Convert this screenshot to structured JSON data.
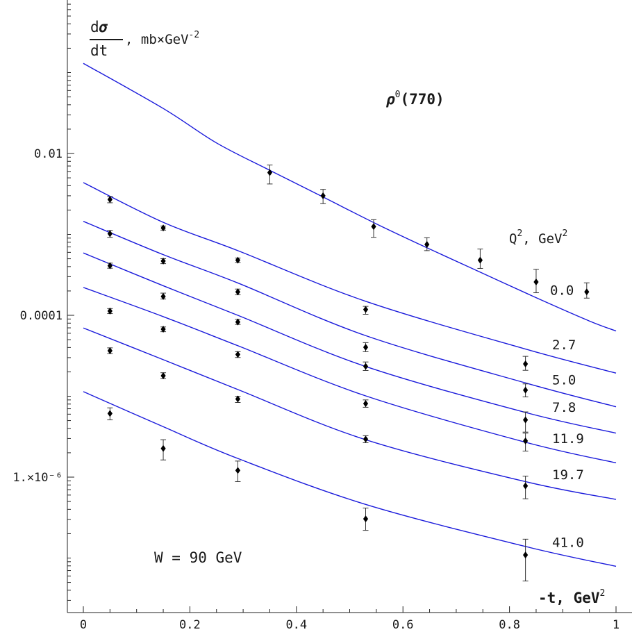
{
  "chart_data": {
    "type": "scatter",
    "title": "",
    "subtitle": "",
    "yscale": "log",
    "xlim": [
      0,
      1
    ],
    "ylim": [
      2.5e-08,
      1.0
    ],
    "x_ticks": [
      0,
      0.2,
      0.4,
      0.6,
      0.8,
      1
    ],
    "x_tick_labels": [
      "0",
      "0.2",
      "0.4",
      "0.6",
      "0.8",
      "1"
    ],
    "y_ticks": [
      0.01,
      0.0001,
      1e-06
    ],
    "y_tick_labels": [
      "0.01",
      "0.0001",
      "1.×10⁻⁶"
    ],
    "grid": false,
    "legend_title": {
      "main": "Q",
      "sup": "2",
      "rest": ", GeV",
      "sup2": "2"
    },
    "ylabel": {
      "num_d": "d",
      "num_sym": "σ",
      "den": "dt",
      "units": ", mb×GeV",
      "units_sup": "-2"
    },
    "xlabel": {
      "main": "-t, GeV",
      "sup": "2"
    },
    "particle_label": {
      "sym": "ρ",
      "sup": "0",
      "rest": "(770)"
    },
    "energy_label": "W = 90 GeV",
    "curve_color": "#1a1adb",
    "point_color": "#000000",
    "series": [
      {
        "name": "0.0",
        "curve": {
          "x": [
            0,
            0.15,
            0.25,
            0.35,
            0.45,
            0.55,
            0.65,
            0.75,
            0.85,
            0.95,
            1.0
          ],
          "y": [
            0.13,
            0.036,
            0.0135,
            0.0062,
            0.0029,
            0.00135,
            0.00066,
            0.00033,
            0.000165,
            8.5e-05,
            6.4e-05
          ]
        },
        "points": {
          "x": [
            0.35,
            0.45,
            0.545,
            0.645,
            0.745,
            0.85,
            0.945
          ],
          "y": [
            0.0058,
            0.003,
            0.00125,
            0.00075,
            0.00048,
            0.000258,
            0.000195
          ],
          "err_lo": [
            0.0042,
            0.0024,
            0.00092,
            0.00063,
            0.00038,
            0.00019,
            0.000163
          ],
          "err_hi": [
            0.0072,
            0.0036,
            0.00152,
            0.00091,
            0.00066,
            0.00037,
            0.000252
          ]
        }
      },
      {
        "name": "2.7",
        "curve": {
          "x": [
            0,
            0.15,
            0.29,
            0.53,
            0.83,
            1.0
          ],
          "y": [
            0.00437,
            0.00141,
            0.00063,
            0.000149,
            3.83e-05,
            1.93e-05
          ]
        },
        "points": {
          "x": [
            0.05,
            0.15,
            0.29,
            0.53,
            0.83
          ],
          "y": [
            0.0027,
            0.0012,
            0.00048,
            0.000118,
            2.51e-05
          ],
          "err_lo": [
            0.00246,
            0.00113,
            0.00045,
            0.000103,
            2.09e-05
          ],
          "err_hi": [
            0.00294,
            0.00127,
            0.00051,
            0.000129,
            3.11e-05
          ]
        }
      },
      {
        "name": "5.0",
        "curve": {
          "x": [
            0,
            0.15,
            0.29,
            0.53,
            0.83,
            1.0
          ],
          "y": [
            0.00145,
            0.000562,
            0.000251,
            5.61e-05,
            1.46e-05,
            7.4e-06
          ]
        },
        "points": {
          "x": [
            0.05,
            0.15,
            0.29,
            0.53,
            0.83
          ],
          "y": [
            0.00102,
            0.000468,
            0.000195,
            4.03e-05,
            1.19e-05
          ],
          "err_lo": [
            0.00092,
            0.000435,
            0.000179,
            3.55e-05,
            9.8e-06
          ],
          "err_hi": [
            0.00112,
            0.000501,
            0.000211,
            4.59e-05,
            1.42e-05
          ]
        }
      },
      {
        "name": "7.8",
        "curve": {
          "x": [
            0,
            0.15,
            0.29,
            0.53,
            0.83,
            1.0
          ],
          "y": [
            0.00059,
            0.000232,
            0.0001,
            2.33e-05,
            6.3e-06,
            3.5e-06
          ]
        },
        "points": {
          "x": [
            0.05,
            0.15,
            0.29,
            0.53,
            0.83
          ],
          "y": [
            0.00041,
            0.000171,
            8.27e-05,
            2.34e-05,
            5.1e-06
          ],
          "err_lo": [
            0.000382,
            0.000159,
            7.71e-05,
            2.08e-05,
            3.6e-06
          ],
          "err_hi": [
            0.000441,
            0.000188,
            8.93e-05,
            2.65e-05,
            6.4e-06
          ]
        }
      },
      {
        "name": "11.9",
        "curve": {
          "x": [
            0,
            0.15,
            0.29,
            0.53,
            0.83,
            1.0
          ],
          "y": [
            0.000221,
            9.63e-05,
            4.21e-05,
            1.01e-05,
            2.7e-06,
            1.5e-06
          ]
        },
        "points": {
          "x": [
            0.05,
            0.15,
            0.29,
            0.53,
            0.83
          ],
          "y": [
            0.000113,
            6.74e-05,
            3.28e-05,
            8.1e-06,
            2.8e-06
          ],
          "err_lo": [
            0.000105,
            6.27e-05,
            3.01e-05,
            7.3e-06,
            2.1e-06
          ],
          "err_hi": [
            0.000121,
            7.18e-05,
            3.55e-05,
            9e-06,
            3.5e-06
          ]
        }
      },
      {
        "name": "19.7",
        "curve": {
          "x": [
            0,
            0.15,
            0.29,
            0.53,
            0.83,
            1.0
          ],
          "y": [
            6.97e-05,
            2.83e-05,
            1.21e-05,
            2.9e-06,
            8.8e-07,
            5.3e-07
          ]
        },
        "points": {
          "x": [
            0.05,
            0.15,
            0.29,
            0.53,
            0.83
          ],
          "y": [
            3.65e-05,
            1.79e-05,
            9.24e-06,
            2.95e-06,
            7.8e-07
          ],
          "err_lo": [
            3.36e-05,
            1.65e-05,
            8.37e-06,
            2.66e-06,
            5.4e-07
          ],
          "err_hi": [
            3.96e-05,
            1.95e-05,
            9.98e-06,
            3.25e-06,
            1.03e-06
          ]
        }
      },
      {
        "name": "41.0",
        "curve": {
          "x": [
            0,
            0.15,
            0.29,
            0.53,
            0.83,
            1.0
          ],
          "y": [
            1.14e-05,
            4.2e-06,
            1.7e-06,
            4.6e-07,
            1.39e-07,
            7.9e-08
          ]
        },
        "points": {
          "x": [
            0.05,
            0.15,
            0.29,
            0.53,
            0.83
          ],
          "y": [
            6.12e-06,
            2.26e-06,
            1.21e-06,
            3.05e-07,
            1.09e-07
          ],
          "err_lo": [
            5.1e-06,
            1.63e-06,
            8.8e-07,
            2.2e-07,
            5.2e-08
          ],
          "err_hi": [
            7.18e-06,
            2.9e-06,
            1.58e-06,
            4.15e-07,
            1.71e-07
          ]
        }
      }
    ]
  }
}
